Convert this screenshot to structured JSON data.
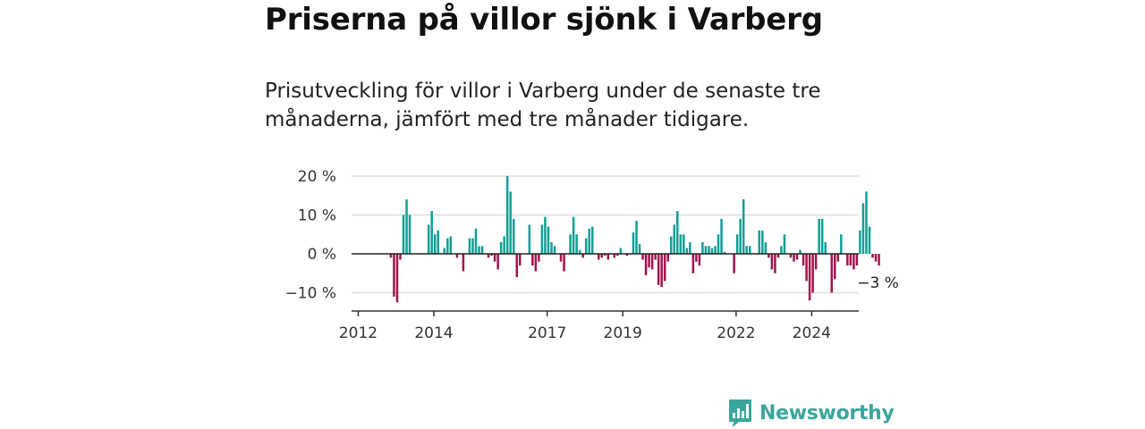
{
  "title": "Priserna på villor sjönk i Varberg",
  "subtitle": "Prisutveckling för villor i Varberg under de senaste tre månaderna, jämfört med tre månader tidigare.",
  "brand": {
    "name": "Newsworthy",
    "color": "#3aa69b"
  },
  "colors": {
    "positive": "#10a095",
    "negative": "#a5134e",
    "grid": "#dddddd",
    "zero_line": "#222222"
  },
  "chart_data": {
    "type": "bar",
    "ylim": [
      -14,
      21
    ],
    "y_ticks": [
      {
        "value": 20,
        "label": "20 %"
      },
      {
        "value": 10,
        "label": "10 %"
      },
      {
        "value": 0,
        "label": "0 %"
      },
      {
        "value": -10,
        "label": "−10 %"
      }
    ],
    "x_ticks": [
      {
        "year": 2012,
        "label": "2012"
      },
      {
        "year": 2014,
        "label": "2014"
      },
      {
        "year": 2017,
        "label": "2017"
      },
      {
        "year": 2019,
        "label": "2019"
      },
      {
        "year": 2022,
        "label": "2022"
      },
      {
        "year": 2024,
        "label": "2024"
      }
    ],
    "annotation": {
      "label": "−3 %"
    },
    "series": [
      {
        "start": "2012-01",
        "frequency": "monthly",
        "values": [
          0,
          0,
          0,
          0,
          0,
          0,
          0,
          0,
          0,
          0,
          -1,
          -11,
          -12.5,
          -1.5,
          10,
          14,
          10,
          0,
          0,
          0,
          0,
          0,
          7.5,
          11,
          5,
          6,
          0,
          1.5,
          4,
          4.5,
          0,
          -1,
          0,
          -4.5,
          0,
          4,
          4,
          6.5,
          2,
          2,
          0,
          -1,
          -0.5,
          -2,
          -4,
          3,
          4.5,
          20,
          16,
          9,
          -6,
          -3,
          0,
          0,
          7.5,
          -3,
          -4.5,
          -2,
          7.5,
          9.5,
          7,
          3,
          2,
          0,
          -2,
          -4.5,
          0,
          5,
          9.5,
          5,
          1,
          -1,
          4,
          6.5,
          7,
          0,
          -1.5,
          -1,
          -0.5,
          -1.5,
          0,
          -1,
          -0.5,
          1.5,
          0,
          -0.5,
          0,
          5.5,
          8.5,
          2.5,
          -1.5,
          -5.5,
          -3.5,
          -4,
          -1.5,
          -8,
          -8.5,
          -7,
          -2,
          4.5,
          7.5,
          11,
          5,
          5,
          1.5,
          3,
          -5,
          -2,
          -3,
          3,
          2,
          2,
          1.5,
          2,
          5,
          9,
          0.5,
          0,
          0,
          -5,
          5,
          9,
          14,
          2,
          2,
          0,
          0,
          6,
          6,
          3,
          -1,
          -4,
          -5,
          -1,
          2,
          5,
          0,
          -1,
          -2,
          -1.5,
          1,
          -3,
          -7,
          -12,
          -10,
          -4,
          9,
          9,
          3,
          0,
          -10,
          -6.5,
          -2,
          5,
          0,
          -3,
          -3,
          -4,
          -3,
          6,
          13,
          16,
          7,
          -1,
          -2,
          -3
        ]
      }
    ]
  }
}
